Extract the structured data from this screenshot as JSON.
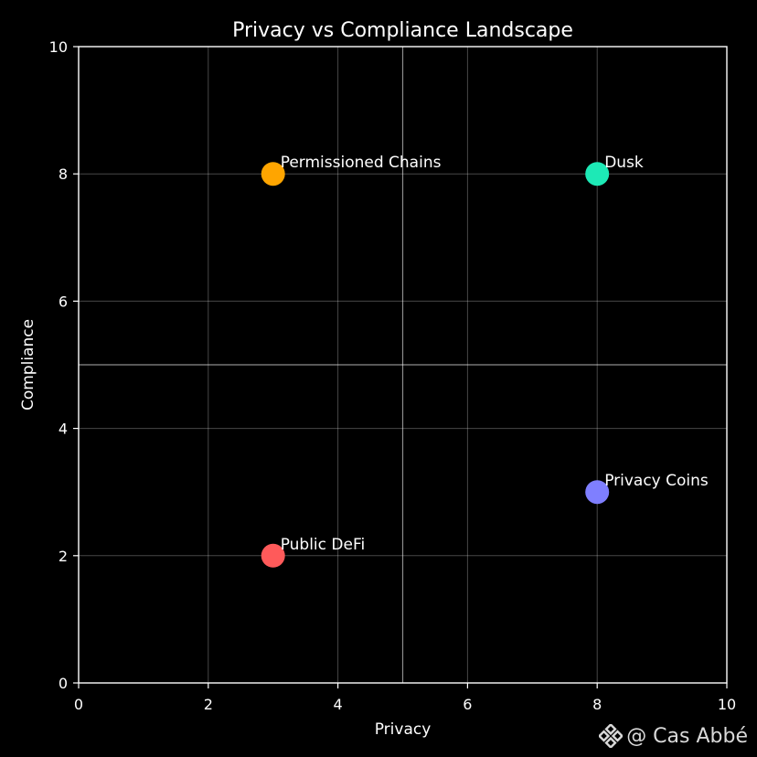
{
  "chart_data": {
    "type": "scatter",
    "title": "Privacy vs Compliance Landscape",
    "xlabel": "Privacy",
    "ylabel": "Compliance",
    "xlim": [
      0,
      10
    ],
    "ylim": [
      0,
      10
    ],
    "xticks": [
      0,
      2,
      4,
      6,
      8,
      10
    ],
    "yticks": [
      0,
      2,
      4,
      6,
      8,
      10
    ],
    "grid": true,
    "reference_lines": {
      "x": 5,
      "y": 5
    },
    "points": [
      {
        "label": "Permissioned Chains",
        "x": 3,
        "y": 8,
        "color": "#FFA500"
      },
      {
        "label": "Dusk",
        "x": 8,
        "y": 8,
        "color": "#1DE9B6"
      },
      {
        "label": "Privacy Coins",
        "x": 8,
        "y": 3,
        "color": "#7F7FFF"
      },
      {
        "label": "Public DeFi",
        "x": 3,
        "y": 2,
        "color": "#FF5A5A"
      }
    ]
  },
  "watermark": {
    "text": "@ Cas Abbé",
    "icon": "binance-logo-icon"
  }
}
